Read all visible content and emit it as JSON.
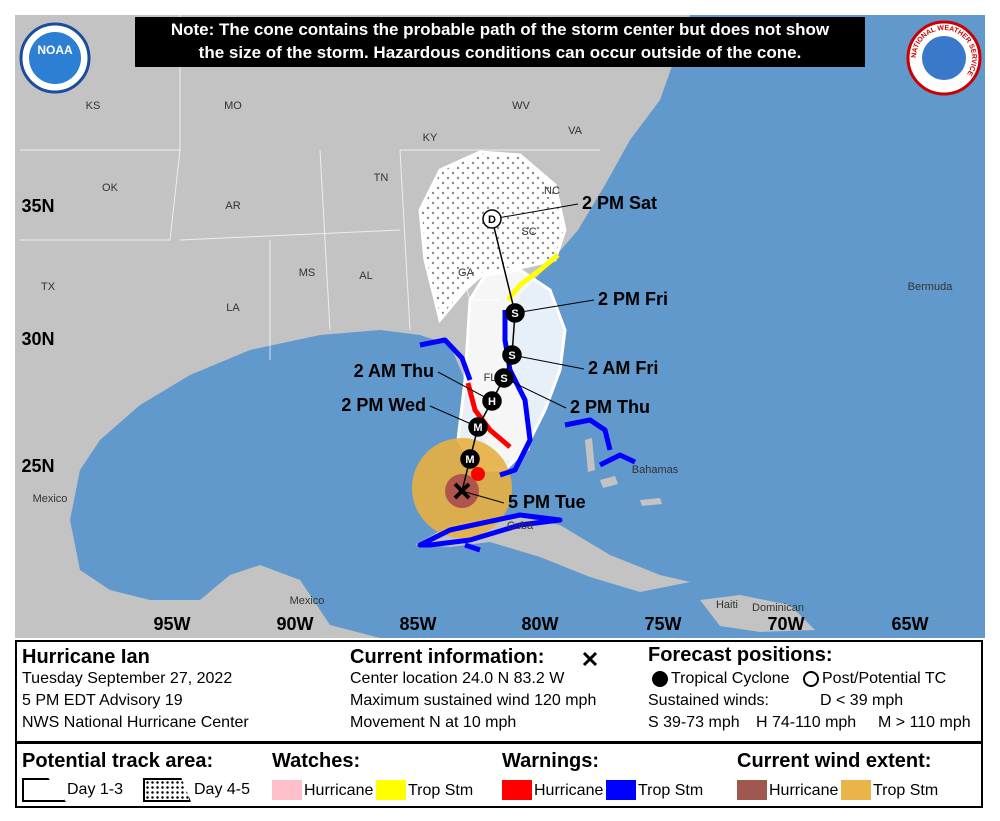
{
  "note": [
    "Note: The cone contains the probable path of the storm center but does not show",
    "the size of the storm. Hazardous conditions can occur outside of the cone."
  ],
  "logos": {
    "noaa": "NOAA",
    "nws": "NATIONAL WEATHER SERVICE"
  },
  "map": {
    "latitudes": [
      "35N",
      "30N",
      "25N"
    ],
    "longitudes": [
      "95W",
      "90W",
      "85W",
      "80W",
      "75W",
      "70W",
      "65W"
    ],
    "places": [
      "KS",
      "MO",
      "KY",
      "WV",
      "VA",
      "OK",
      "AR",
      "TN",
      "NC",
      "SC",
      "GA",
      "MS",
      "AL",
      "LA",
      "TX",
      "FL",
      "Bermuda",
      "Bahamas",
      "Cuba",
      "Mexico",
      "Mexico",
      "Haiti",
      "Dominican"
    ],
    "forecast_points": [
      {
        "symbol": "D",
        "time": "2 PM Sat"
      },
      {
        "symbol": "S",
        "time": "2 PM Fri"
      },
      {
        "symbol": "S",
        "time": "2 AM Fri"
      },
      {
        "symbol": "S",
        "time": "2 PM Thu"
      },
      {
        "symbol": "H",
        "time": "2 AM Thu"
      },
      {
        "symbol": "M",
        "time": "2 PM Wed"
      },
      {
        "symbol": "M"
      }
    ],
    "current_time": "5 PM Tue"
  },
  "storm": {
    "name": "Hurricane Ian",
    "date": "Tuesday September 27, 2022",
    "advisory": "5 PM EDT Advisory 19",
    "center": "NWS National Hurricane Center"
  },
  "current": {
    "title": "Current information:",
    "location": "Center location 24.0 N 83.2 W",
    "wind": "Maximum sustained wind 120 mph",
    "movement": "Movement N at 10 mph"
  },
  "forecast": {
    "title": "Forecast positions:",
    "tropical": "Tropical Cyclone",
    "post": "Post/Potential TC",
    "winds_title": "Sustained winds:",
    "d": "D < 39 mph",
    "s": "S 39-73 mph",
    "h": "H 74-110 mph",
    "m": "M > 110 mph"
  },
  "legend": {
    "track": {
      "title": "Potential track area:",
      "day13": "Day 1-3",
      "day45": "Day 4-5"
    },
    "watches": {
      "title": "Watches:",
      "hurricane": "Hurricane",
      "trop": "Trop Stm"
    },
    "warnings": {
      "title": "Warnings:",
      "hurricane": "Hurricane",
      "trop": "Trop Stm"
    },
    "wind": {
      "title": "Current wind extent:",
      "hurricane": "Hurricane",
      "trop": "Trop Stm"
    }
  }
}
